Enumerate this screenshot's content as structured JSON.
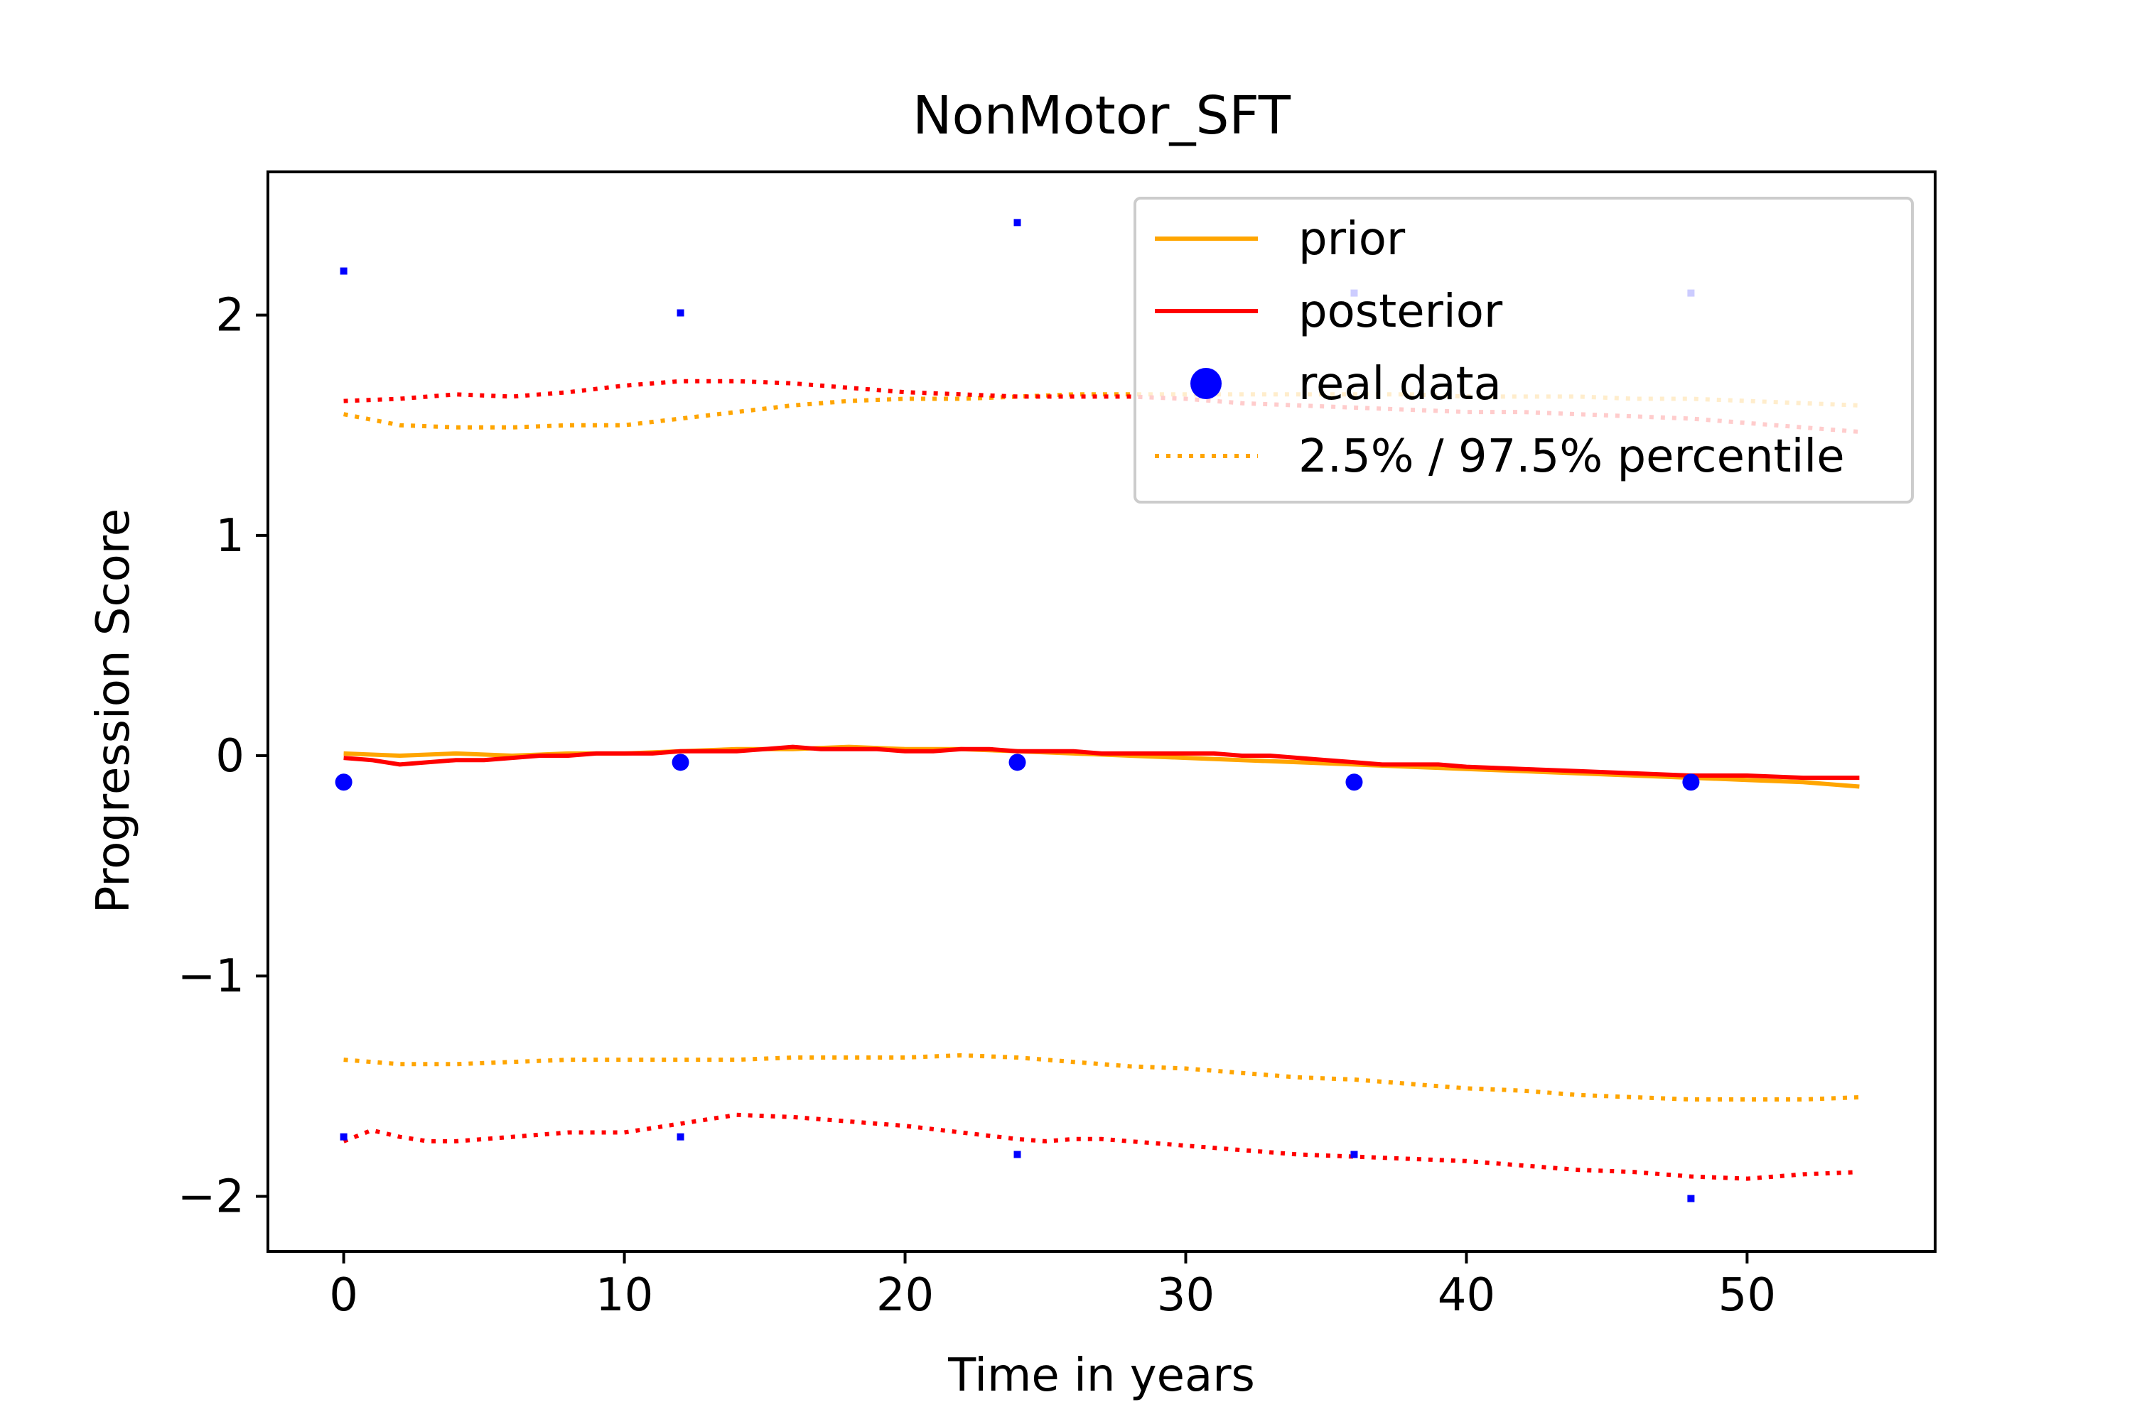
{
  "chart_data": {
    "type": "line",
    "title": "NonMotor_SFT",
    "xlabel": "Time in years",
    "ylabel": "Progression Score",
    "xlim": [
      -2.7,
      56.7
    ],
    "ylim": [
      -2.25,
      2.65
    ],
    "xticks": [
      0,
      10,
      20,
      30,
      40,
      50
    ],
    "xtick_labels": [
      "0",
      "10",
      "20",
      "30",
      "40",
      "50"
    ],
    "yticks": [
      -2,
      -1,
      0,
      1,
      2
    ],
    "ytick_labels": [
      "−2",
      "−1",
      "0",
      "1",
      "2"
    ],
    "grid": false,
    "legend_position": "top-right",
    "series": [
      {
        "name": "prior",
        "color": "#ffa500",
        "style": "solid",
        "x": [
          0,
          2,
          4,
          6,
          8,
          10,
          12,
          14,
          16,
          18,
          20,
          22,
          24,
          26,
          28,
          30,
          32,
          34,
          36,
          38,
          40,
          42,
          44,
          46,
          48,
          50,
          52,
          54
        ],
        "y": [
          0.01,
          0.0,
          0.01,
          0.0,
          0.01,
          0.01,
          0.02,
          0.03,
          0.03,
          0.04,
          0.03,
          0.03,
          0.02,
          0.01,
          0.0,
          -0.01,
          -0.02,
          -0.03,
          -0.04,
          -0.05,
          -0.06,
          -0.07,
          -0.08,
          -0.09,
          -0.1,
          -0.11,
          -0.12,
          -0.14
        ]
      },
      {
        "name": "posterior",
        "color": "#ff0000",
        "style": "solid",
        "x": [
          0,
          1,
          2,
          3,
          4,
          5,
          6,
          7,
          8,
          9,
          10,
          11,
          12,
          13,
          14,
          15,
          16,
          17,
          18,
          19,
          20,
          21,
          22,
          23,
          24,
          25,
          26,
          27,
          28,
          29,
          30,
          31,
          32,
          33,
          34,
          35,
          36,
          37,
          38,
          39,
          40,
          42,
          44,
          46,
          48,
          50,
          52,
          54
        ],
        "y": [
          -0.01,
          -0.02,
          -0.04,
          -0.03,
          -0.02,
          -0.02,
          -0.01,
          0.0,
          0.0,
          0.01,
          0.01,
          0.01,
          0.02,
          0.02,
          0.02,
          0.03,
          0.04,
          0.03,
          0.03,
          0.03,
          0.02,
          0.02,
          0.03,
          0.03,
          0.02,
          0.02,
          0.02,
          0.01,
          0.01,
          0.01,
          0.01,
          0.01,
          0.0,
          0.0,
          -0.01,
          -0.02,
          -0.03,
          -0.04,
          -0.04,
          -0.04,
          -0.05,
          -0.06,
          -0.07,
          -0.08,
          -0.09,
          -0.09,
          -0.1,
          -0.1
        ]
      },
      {
        "name": "prior 97.5%",
        "color": "#ffa500",
        "style": "dotted",
        "x": [
          0,
          2,
          4,
          6,
          8,
          10,
          12,
          14,
          16,
          18,
          20,
          22,
          24,
          26,
          28,
          30,
          32,
          34,
          36,
          38,
          40,
          42,
          44,
          46,
          48,
          50,
          52,
          54
        ],
        "y": [
          1.55,
          1.5,
          1.49,
          1.49,
          1.5,
          1.5,
          1.53,
          1.56,
          1.59,
          1.61,
          1.62,
          1.62,
          1.63,
          1.64,
          1.64,
          1.64,
          1.64,
          1.64,
          1.64,
          1.64,
          1.63,
          1.63,
          1.63,
          1.62,
          1.62,
          1.61,
          1.6,
          1.59
        ]
      },
      {
        "name": "posterior 97.5%",
        "color": "#ff0000",
        "style": "dotted",
        "x": [
          0,
          2,
          4,
          6,
          8,
          10,
          12,
          14,
          16,
          18,
          20,
          22,
          24,
          26,
          28,
          30,
          32,
          34,
          36,
          38,
          40,
          42,
          44,
          46,
          48,
          50,
          52,
          54
        ],
        "y": [
          1.61,
          1.62,
          1.64,
          1.63,
          1.65,
          1.68,
          1.7,
          1.7,
          1.69,
          1.67,
          1.65,
          1.64,
          1.63,
          1.63,
          1.63,
          1.62,
          1.6,
          1.59,
          1.58,
          1.57,
          1.56,
          1.56,
          1.55,
          1.54,
          1.53,
          1.51,
          1.49,
          1.47
        ]
      },
      {
        "name": "prior 2.5%",
        "color": "#ffa500",
        "style": "dotted",
        "x": [
          0,
          2,
          4,
          6,
          8,
          10,
          12,
          14,
          16,
          18,
          20,
          22,
          24,
          26,
          28,
          30,
          32,
          34,
          36,
          38,
          40,
          42,
          44,
          46,
          48,
          50,
          52,
          54
        ],
        "y": [
          -1.38,
          -1.4,
          -1.4,
          -1.39,
          -1.38,
          -1.38,
          -1.38,
          -1.38,
          -1.37,
          -1.37,
          -1.37,
          -1.36,
          -1.37,
          -1.39,
          -1.41,
          -1.42,
          -1.44,
          -1.46,
          -1.47,
          -1.49,
          -1.51,
          -1.52,
          -1.54,
          -1.55,
          -1.56,
          -1.56,
          -1.56,
          -1.55
        ]
      },
      {
        "name": "posterior 2.5%",
        "color": "#ff0000",
        "style": "dotted",
        "x": [
          0,
          1,
          2,
          3,
          4,
          6,
          8,
          10,
          12,
          14,
          16,
          18,
          20,
          22,
          24,
          25,
          26,
          27,
          28,
          30,
          32,
          34,
          36,
          38,
          40,
          42,
          44,
          46,
          48,
          50,
          52,
          54
        ],
        "y": [
          -1.75,
          -1.7,
          -1.73,
          -1.75,
          -1.75,
          -1.73,
          -1.71,
          -1.71,
          -1.67,
          -1.63,
          -1.64,
          -1.66,
          -1.68,
          -1.71,
          -1.74,
          -1.75,
          -1.74,
          -1.74,
          -1.75,
          -1.77,
          -1.79,
          -1.81,
          -1.82,
          -1.83,
          -1.84,
          -1.86,
          -1.88,
          -1.89,
          -1.91,
          -1.92,
          -1.9,
          -1.89
        ]
      }
    ],
    "real_data": {
      "name": "real data",
      "color": "#0000ff",
      "x": [
        0,
        12,
        24,
        36,
        48
      ],
      "mean": [
        -0.12,
        -0.03,
        -0.03,
        -0.12,
        -0.12
      ],
      "upper": [
        2.2,
        2.01,
        2.42,
        2.1,
        2.1
      ],
      "lower": [
        -1.73,
        -1.73,
        -1.81,
        -1.81,
        -2.01
      ]
    },
    "legend": [
      {
        "label": "prior",
        "color": "#ffa500",
        "marker": "solid-line"
      },
      {
        "label": "posterior",
        "color": "#ff0000",
        "marker": "solid-line"
      },
      {
        "label": "real data",
        "color": "#0000ff",
        "marker": "dot"
      },
      {
        "label": "2.5% / 97.5% percentile",
        "color": "#ffa500",
        "marker": "dotted-line"
      }
    ]
  }
}
